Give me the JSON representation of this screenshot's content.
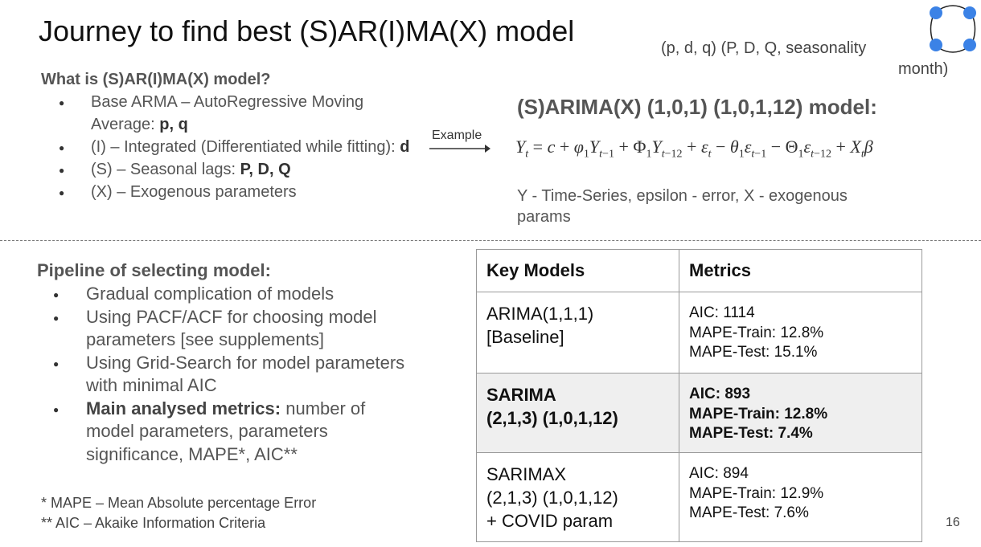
{
  "title": "Journey to find best (S)AR(I)MA(X) model",
  "legend": {
    "pdq_label": "(p, d, q) (P, D, Q, seasonality",
    "month_label": "month)"
  },
  "what_section": {
    "heading": "What is (S)AR(I)MA(X) model?",
    "items": [
      {
        "text": "Base ARMA – AutoRegressive Moving Average: ",
        "bold": "p, q"
      },
      {
        "text": "(I) – Integrated (Differentiated while fitting): ",
        "bold": "d"
      },
      {
        "text": "(S) – Seasonal lags: ",
        "bold": "P, D, Q"
      },
      {
        "text": "(X) – Exogenous parameters",
        "bold": ""
      }
    ]
  },
  "example": {
    "label": "Example",
    "model_title": "(S)ARIMA(X) (1,0,1) (1,0,1,12) model:",
    "note": "Y - Time-Series, epsilon - error, X - exogenous params"
  },
  "pipeline": {
    "heading": "Pipeline of selecting model:",
    "items": [
      {
        "bold": "",
        "text": "Gradual complication of models"
      },
      {
        "bold": "",
        "text": "Using PACF/ACF for choosing model parameters [see supplements]"
      },
      {
        "bold": "",
        "text": "Using Grid-Search for model parameters with minimal AIC"
      },
      {
        "bold": "Main analysed metrics:",
        "text": " number of model parameters, parameters significance, MAPE*, AIC**"
      }
    ]
  },
  "footnotes": [
    "* MAPE – Mean Absolute percentage Error",
    "** AIC – Akaike Information Criteria"
  ],
  "table": {
    "headers": [
      "Key Models",
      "Metrics"
    ],
    "rows": [
      {
        "model": [
          "ARIMA(1,1,1)",
          "[Baseline]"
        ],
        "metrics": [
          "AIC: 1114",
          "MAPE-Train: 12.8%",
          "MAPE-Test: 15.1%"
        ]
      },
      {
        "model": [
          "SARIMA",
          "(2,1,3) (1,0,1,12)"
        ],
        "metrics": [
          "AIC: 893",
          "MAPE-Train: 12.8%",
          "MAPE-Test: 7.4%"
        ]
      },
      {
        "model": [
          "SARIMAX",
          "(2,1,3) (1,0,1,12)",
          "+ COVID param"
        ],
        "metrics": [
          "AIC: 894",
          "MAPE-Train: 12.9%",
          "MAPE-Test: 7.6%"
        ]
      }
    ]
  },
  "page_number": "16",
  "colors": {
    "logo_blue": "#3b82e6",
    "highlight_row": "#efefef"
  }
}
